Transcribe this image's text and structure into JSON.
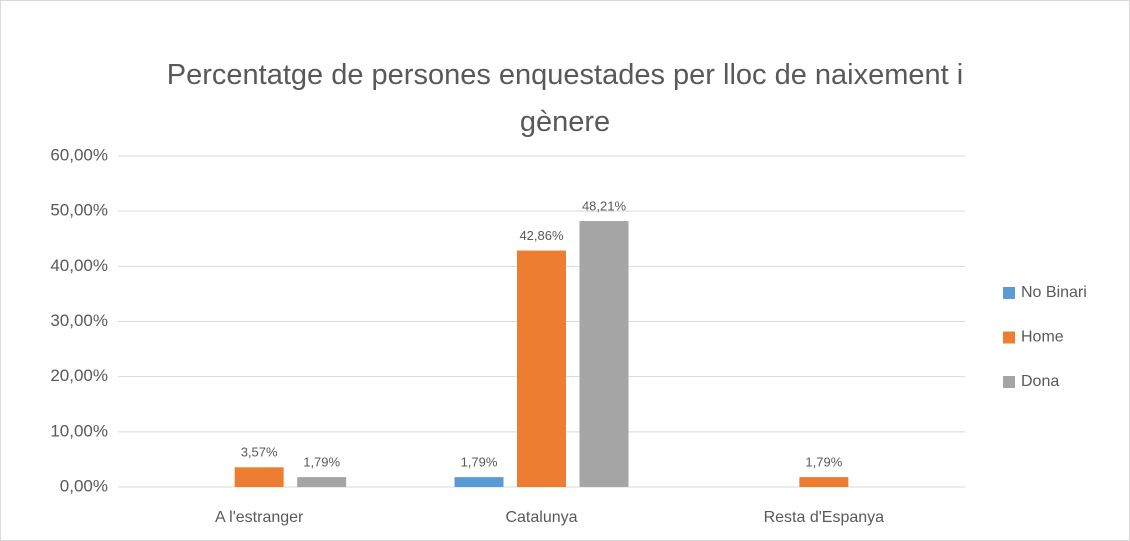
{
  "chart_data": {
    "type": "bar",
    "title": "Percentatge de persones enquestades per lloc de naixement i gènere",
    "categories": [
      "A l'estranger",
      "Catalunya",
      "Resta d'Espanya"
    ],
    "series": [
      {
        "name": "No Binari",
        "color": "#5b9bd5",
        "values": [
          null,
          1.79,
          null
        ],
        "value_labels": [
          null,
          "1,79%",
          null
        ]
      },
      {
        "name": "Home",
        "color": "#ed7d31",
        "values": [
          3.57,
          42.86,
          1.79
        ],
        "value_labels": [
          "3,57%",
          "42,86%",
          "1,79%"
        ]
      },
      {
        "name": "Dona",
        "color": "#a5a5a5",
        "values": [
          1.79,
          48.21,
          null
        ],
        "value_labels": [
          "1,79%",
          "48,21%",
          null
        ]
      }
    ],
    "ylim": [
      0,
      60
    ],
    "yticks": [
      {
        "value": 0,
        "label": "0,00%"
      },
      {
        "value": 10,
        "label": "10,00%"
      },
      {
        "value": 20,
        "label": "20,00%"
      },
      {
        "value": 30,
        "label": "30,00%"
      },
      {
        "value": 40,
        "label": "40,00%"
      },
      {
        "value": 50,
        "label": "50,00%"
      },
      {
        "value": 60,
        "label": "60,00%"
      }
    ],
    "grid": true,
    "legend": "right"
  }
}
